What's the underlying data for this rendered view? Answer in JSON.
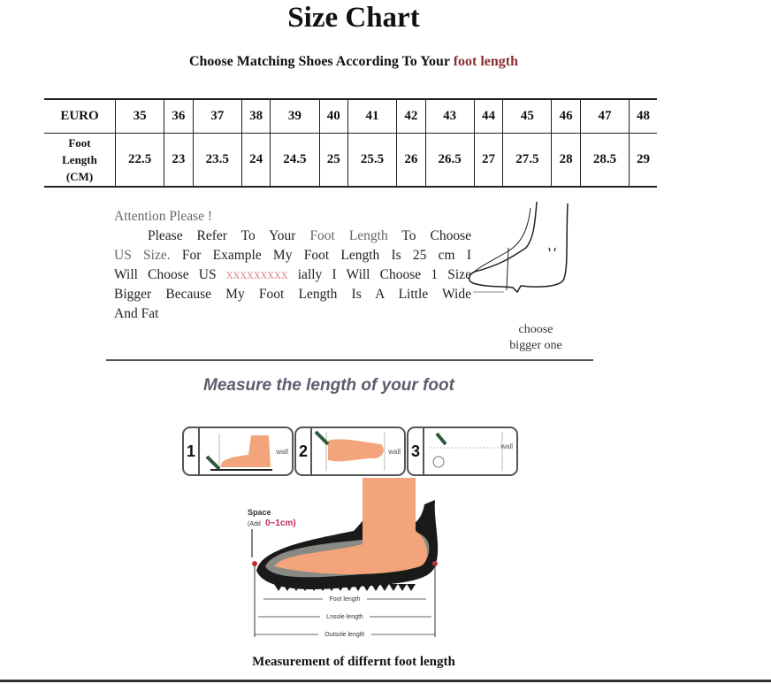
{
  "title": "Size Chart",
  "subtitle": {
    "prefix": "Choose Matching Shoes According To Your ",
    "highlight": "foot length"
  },
  "table": {
    "row1_header": "EURO",
    "row2_header": [
      "Foot",
      "Length",
      "(CM)"
    ],
    "euro": [
      "35",
      "36",
      "37",
      "38",
      "39",
      "40",
      "41",
      "42",
      "43",
      "44",
      "45",
      "46",
      "47",
      "48"
    ],
    "foot_length_cm": [
      "22.5",
      "23",
      "23.5",
      "24",
      "24.5",
      "25",
      "25.5",
      "26",
      "26.5",
      "27",
      "27.5",
      "28",
      "28.5",
      "29"
    ]
  },
  "note": {
    "heading": "Attention Please !",
    "l1a": "Please Refer To Your ",
    "l1b": "Foot Length",
    "l1c": " To Choose",
    "l2a": "US Size.",
    "l2b": " For Example My Foot Length Is 25 cm I",
    "l3a": "Will Choose US ",
    "l3b": "xxxxxxxxx",
    "l3c": " ially I Will Choose 1 Size",
    "l4": "Bigger Because My Foot Length Is A Little Wide",
    "l5": "And Fat"
  },
  "choose_label": [
    "choose",
    "bigger one"
  ],
  "measure_heading": "Measure the length of your foot",
  "steps": [
    {
      "num": "1",
      "wall": "wall"
    },
    {
      "num": "2",
      "wall": "wall"
    },
    {
      "num": "3",
      "wall": "wall"
    }
  ],
  "diagram": {
    "space_label": "Space",
    "space_add": "(Add",
    "space_range": "0~1cm)",
    "foot_length": "Foot length",
    "insole_length": "Lnsole length",
    "outsole_length": "Outsole length"
  },
  "caption": "Measurement of differnt foot length",
  "colors": {
    "skin": "#f4a47a",
    "accent": "#8b2f2f",
    "sole": "#1a1a1a"
  }
}
